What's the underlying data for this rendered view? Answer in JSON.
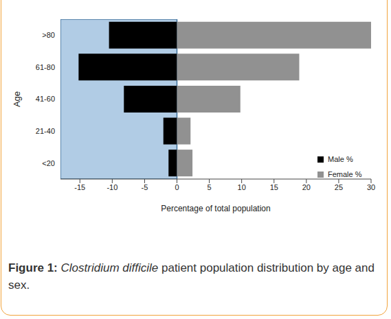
{
  "chart_data": {
    "type": "bar",
    "orientation": "horizontal",
    "stacked": true,
    "categories": [
      "<20",
      "21-40",
      "41-60",
      "61-80",
      ">80"
    ],
    "series": [
      {
        "name": "Male %",
        "color": "#000000",
        "values": [
          -1.3,
          -2.1,
          -8.2,
          -15.2,
          -10.5
        ]
      },
      {
        "name": "Female %",
        "color": "#919191",
        "values": [
          2.4,
          2.1,
          9.8,
          18.9,
          30
        ]
      }
    ],
    "xlabel": "Percentage of total population",
    "ylabel": "Age",
    "xlim": [
      -18,
      30
    ],
    "xticks": [
      -15,
      -10,
      -5,
      0,
      5,
      10,
      15,
      20,
      25,
      30
    ],
    "grid": false,
    "legend": "right",
    "caption": [
      "Figure 1:",
      "Clostridium difficile",
      "patient population distribution by age and sex."
    ]
  }
}
